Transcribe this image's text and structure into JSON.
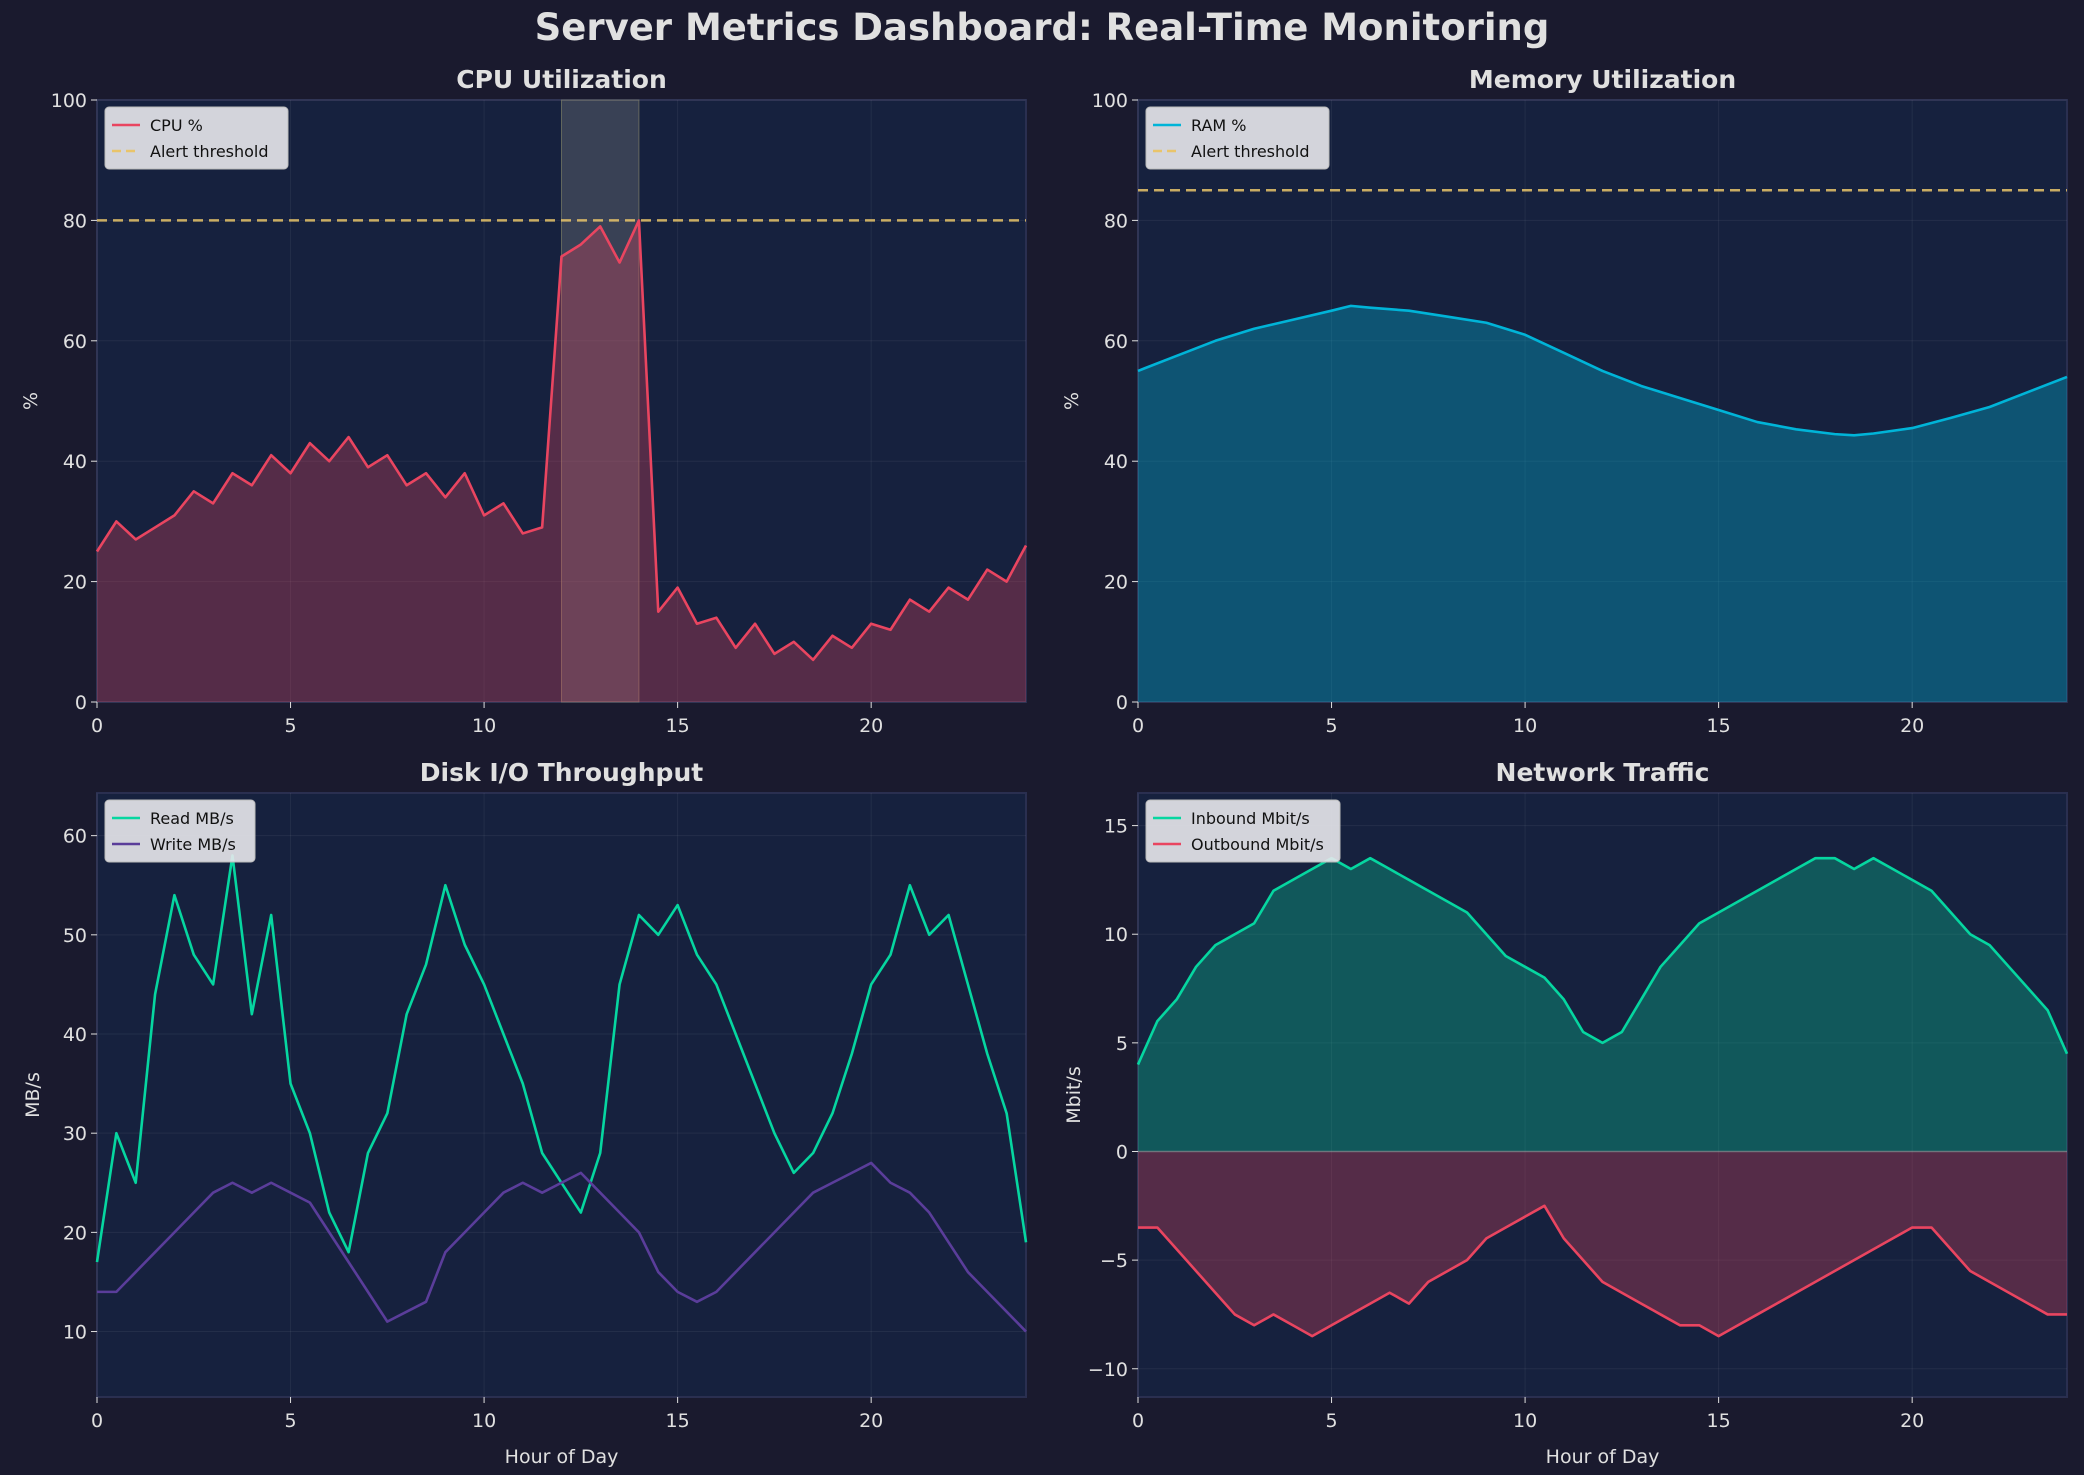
{
  "title": "Server Metrics Dashboard: Real-Time Monitoring",
  "colors": {
    "background": "#1a1a2e",
    "axes": "#16213e",
    "text": "#e0e0e0",
    "threshold": "#e9c46a",
    "cpu": "#e94560",
    "ram": "#00b4d8",
    "read": "#06d6a0",
    "write": "#5a3d9a",
    "inbound": "#06d6a0",
    "outbound": "#e94560"
  },
  "chart_data": [
    {
      "type": "line",
      "title": "CPU Utilization",
      "xlabel": "",
      "ylabel": "%",
      "xlim": [
        0,
        24
      ],
      "ylim": [
        0,
        100
      ],
      "xticks": [
        0,
        5,
        10,
        15,
        20
      ],
      "yticks": [
        0,
        20,
        40,
        60,
        80,
        100
      ],
      "grid": true,
      "legend": "top-left",
      "highlight_span": [
        12,
        14
      ],
      "threshold": {
        "name": "Alert threshold",
        "value": 80
      },
      "x": [
        0,
        0.5,
        1,
        1.5,
        2,
        2.5,
        3,
        3.5,
        4,
        4.5,
        5,
        5.5,
        6,
        6.5,
        7,
        7.5,
        8,
        8.5,
        9,
        9.5,
        10,
        10.5,
        11,
        11.5,
        12,
        12.5,
        13,
        13.5,
        14,
        14.5,
        15,
        15.5,
        16,
        16.5,
        17,
        17.5,
        18,
        18.5,
        19,
        19.5,
        20,
        20.5,
        21,
        21.5,
        22,
        22.5,
        23,
        23.5,
        24
      ],
      "series": [
        {
          "name": "CPU %",
          "fill": true,
          "values": [
            25,
            30,
            27,
            29,
            31,
            35,
            33,
            38,
            36,
            41,
            38,
            43,
            40,
            44,
            39,
            41,
            36,
            38,
            34,
            38,
            31,
            33,
            28,
            29,
            74,
            76,
            79,
            73,
            80,
            15,
            19,
            13,
            14,
            9,
            13,
            8,
            10,
            7,
            11,
            9,
            13,
            12,
            17,
            15,
            19,
            17,
            22,
            20,
            26
          ]
        }
      ]
    },
    {
      "type": "area",
      "title": "Memory Utilization",
      "xlabel": "",
      "ylabel": "%",
      "xlim": [
        0,
        24
      ],
      "ylim": [
        0,
        100
      ],
      "xticks": [
        0,
        5,
        10,
        15,
        20
      ],
      "yticks": [
        0,
        20,
        40,
        60,
        80,
        100
      ],
      "grid": true,
      "legend": "top-left",
      "threshold": {
        "name": "Alert threshold",
        "value": 85
      },
      "x": [
        0,
        1,
        2,
        3,
        4,
        5,
        5.5,
        6,
        7,
        8,
        9,
        10,
        11,
        12,
        13,
        14,
        15,
        16,
        17,
        18,
        18.5,
        19,
        20,
        21,
        22,
        23,
        24
      ],
      "series": [
        {
          "name": "RAM %",
          "fill": true,
          "values": [
            55,
            57.5,
            60,
            62,
            63.5,
            65,
            65.8,
            65.5,
            65,
            64,
            63,
            61,
            58,
            55,
            52.5,
            50.5,
            48.5,
            46.5,
            45.3,
            44.5,
            44.3,
            44.6,
            45.5,
            47.2,
            49,
            51.5,
            54
          ]
        }
      ]
    },
    {
      "type": "line",
      "title": "Disk I/O Throughput",
      "xlabel": "Hour of Day",
      "ylabel": "MB/s",
      "xlim": [
        0,
        24
      ],
      "ylim": [
        3.4,
        64.3
      ],
      "xticks": [
        0,
        5,
        10,
        15,
        20
      ],
      "yticks": [
        10,
        20,
        30,
        40,
        50,
        60
      ],
      "grid": true,
      "legend": "top-left",
      "x": [
        0,
        0.5,
        1,
        1.5,
        2,
        2.5,
        3,
        3.5,
        4,
        4.5,
        5,
        5.5,
        6,
        6.5,
        7,
        7.5,
        8,
        8.5,
        9,
        9.5,
        10,
        10.5,
        11,
        11.5,
        12,
        12.5,
        13,
        13.5,
        14,
        14.5,
        15,
        15.5,
        16,
        16.5,
        17,
        17.5,
        18,
        18.5,
        19,
        19.5,
        20,
        20.5,
        21,
        21.5,
        22,
        22.5,
        23,
        23.5,
        24
      ],
      "series": [
        {
          "name": "Read MB/s",
          "values": [
            17,
            30,
            25,
            44,
            54,
            48,
            45,
            58,
            42,
            52,
            35,
            30,
            22,
            18,
            28,
            32,
            42,
            47,
            55,
            49,
            45,
            40,
            35,
            28,
            25,
            22,
            28,
            45,
            52,
            50,
            53,
            48,
            45,
            40,
            35,
            30,
            26,
            28,
            32,
            38,
            45,
            48,
            55,
            50,
            52,
            45,
            38,
            32,
            19
          ]
        },
        {
          "name": "Write MB/s",
          "values": [
            14,
            14,
            16,
            18,
            20,
            22,
            24,
            25,
            24,
            25,
            24,
            23,
            20,
            17,
            14,
            11,
            12,
            13,
            18,
            20,
            22,
            24,
            25,
            24,
            25,
            26,
            24,
            22,
            20,
            16,
            14,
            13,
            14,
            16,
            18,
            20,
            22,
            24,
            25,
            26,
            27,
            25,
            24,
            22,
            19,
            16,
            14,
            12,
            10
          ]
        }
      ]
    },
    {
      "type": "area",
      "title": "Network Traffic",
      "xlabel": "Hour of Day",
      "ylabel": "Mbit/s",
      "xlim": [
        0,
        24
      ],
      "ylim": [
        -11.3,
        16.5
      ],
      "xticks": [
        0,
        5,
        10,
        15,
        20
      ],
      "yticks": [
        -10,
        -5,
        0,
        5,
        10,
        15
      ],
      "grid": true,
      "legend": "top-left",
      "x": [
        0,
        0.5,
        1,
        1.5,
        2,
        2.5,
        3,
        3.5,
        4,
        4.5,
        5,
        5.5,
        6,
        6.5,
        7,
        7.5,
        8,
        8.5,
        9,
        9.5,
        10,
        10.5,
        11,
        11.5,
        12,
        12.5,
        13,
        13.5,
        14,
        14.5,
        15,
        15.5,
        16,
        16.5,
        17,
        17.5,
        18,
        18.5,
        19,
        19.5,
        20,
        20.5,
        21,
        21.5,
        22,
        22.5,
        23,
        23.5,
        24
      ],
      "series": [
        {
          "name": "Inbound Mbit/s",
          "fill": true,
          "values": [
            4,
            6,
            7,
            8.5,
            9.5,
            10,
            10.5,
            12,
            12.5,
            13,
            13.5,
            13,
            13.5,
            13,
            12.5,
            12,
            11.5,
            11,
            10,
            9,
            8.5,
            8,
            7,
            5.5,
            5,
            5.5,
            7,
            8.5,
            9.5,
            10.5,
            11,
            11.5,
            12,
            12.5,
            13,
            13.5,
            13.5,
            13,
            13.5,
            13,
            12.5,
            12,
            11,
            10,
            9.5,
            8.5,
            7.5,
            6.5,
            4.5
          ]
        },
        {
          "name": "Outbound Mbit/s",
          "fill": true,
          "values": [
            -3.5,
            -3.5,
            -4.5,
            -5.5,
            -6.5,
            -7.5,
            -8,
            -7.5,
            -8,
            -8.5,
            -8,
            -7.5,
            -7,
            -6.5,
            -7,
            -6,
            -5.5,
            -5,
            -4,
            -3.5,
            -3,
            -2.5,
            -4,
            -5,
            -6,
            -6.5,
            -7,
            -7.5,
            -8,
            -8,
            -8.5,
            -8,
            -7.5,
            -7,
            -6.5,
            -6,
            -5.5,
            -5,
            -4.5,
            -4,
            -3.5,
            -3.5,
            -4.5,
            -5.5,
            -6,
            -6.5,
            -7,
            -7.5,
            -7.5
          ]
        }
      ]
    }
  ]
}
